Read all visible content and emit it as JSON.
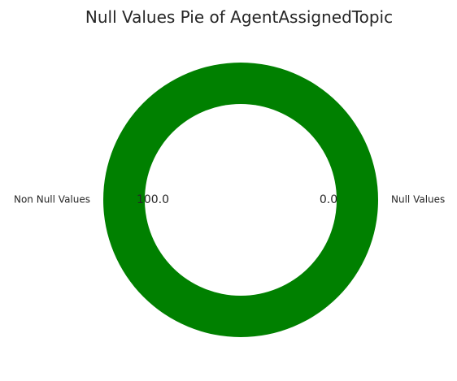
{
  "chart_data": {
    "type": "pie",
    "style": "donut",
    "title": "Null Values Pie of AgentAssignedTopic",
    "slices": [
      {
        "label": "Null Values",
        "value": 0.0,
        "display": "0.0",
        "color": "#ff0000"
      },
      {
        "label": "Non Null Values",
        "value": 100.0,
        "display": "100.0",
        "color": "#008000"
      }
    ],
    "ring_color": "#008000",
    "center_color": "#ffffff"
  }
}
